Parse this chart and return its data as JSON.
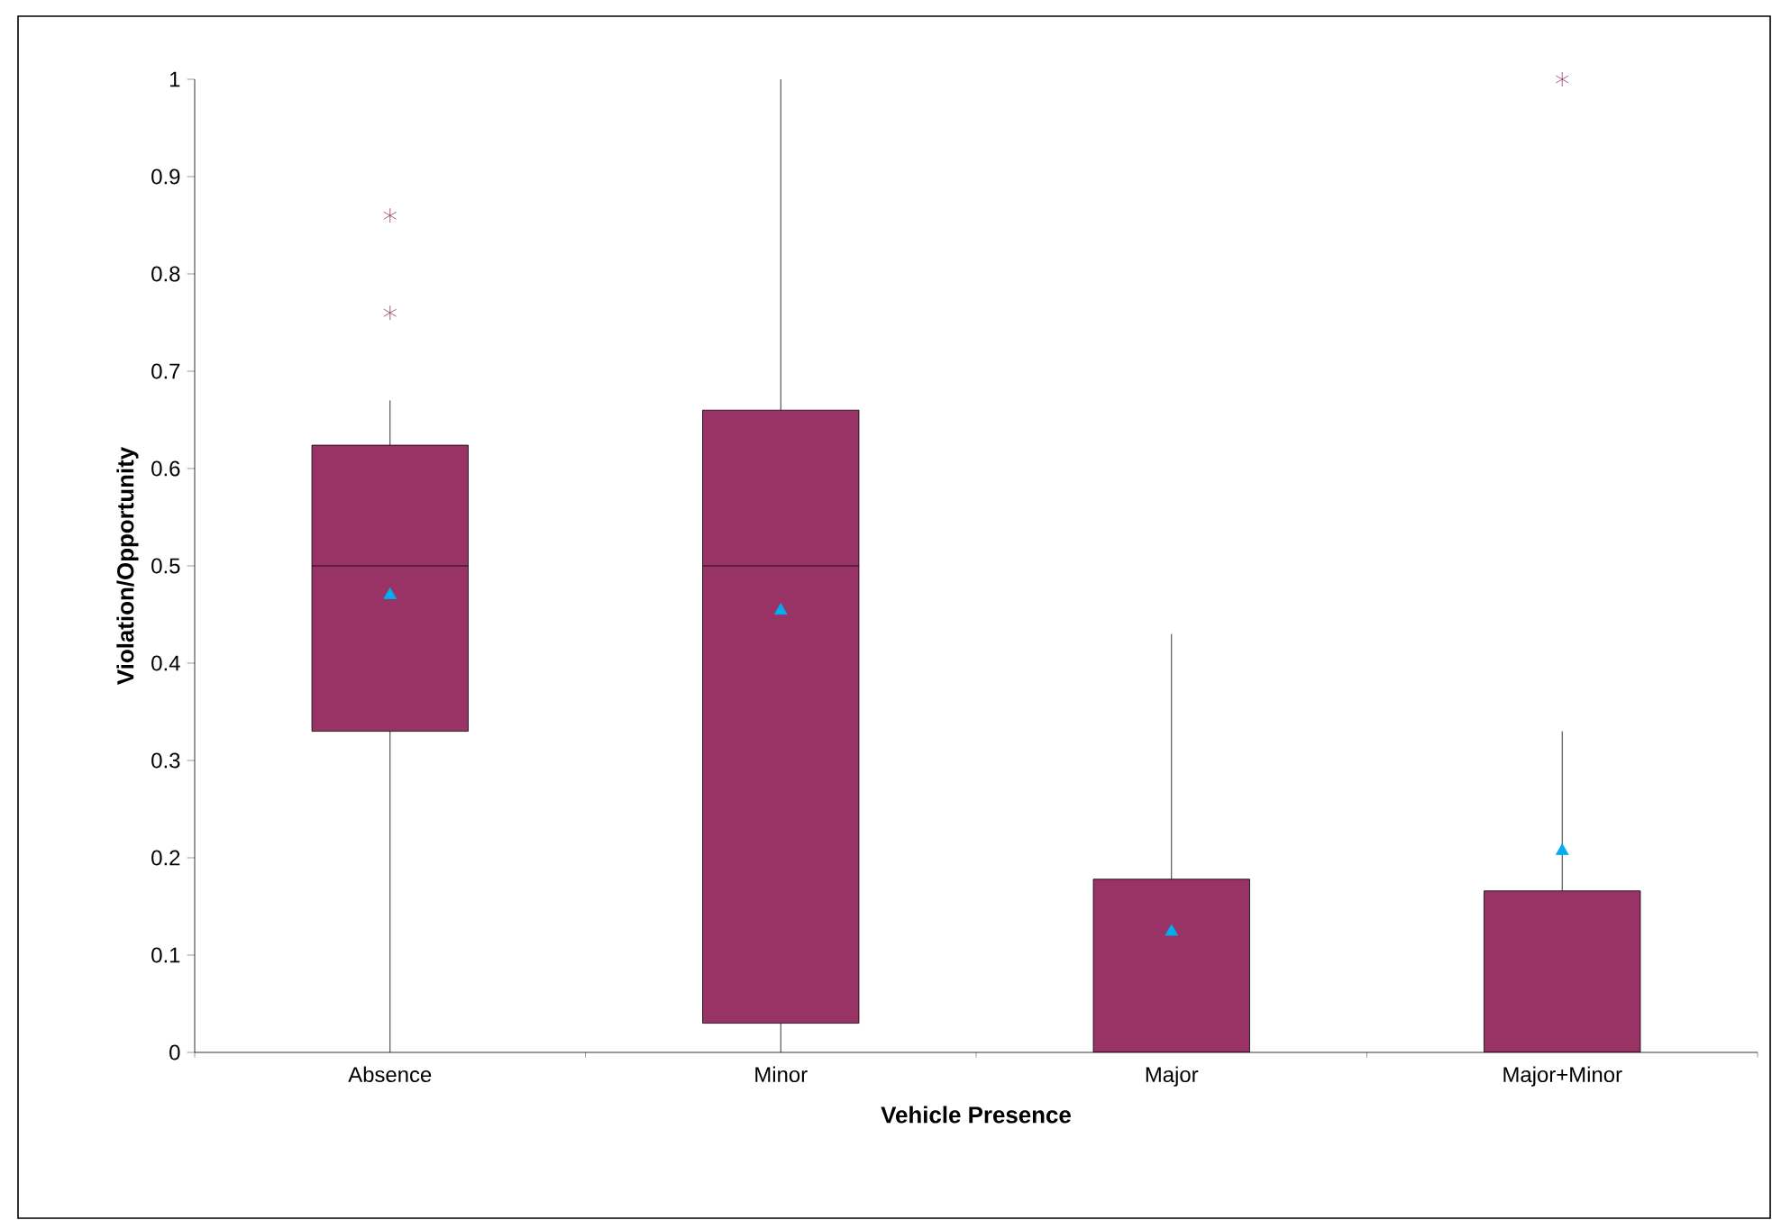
{
  "chart_data": {
    "type": "box",
    "xlabel": "Vehicle Presence",
    "ylabel": "Violation/Opportunity",
    "categories": [
      "Absence",
      "Minor",
      "Major",
      "Major+Minor"
    ],
    "ylim": [
      0,
      1
    ],
    "yticks": [
      0,
      0.1,
      0.2,
      0.3,
      0.4,
      0.5,
      0.6,
      0.7,
      0.8,
      0.9,
      1
    ],
    "grid": false,
    "series": [
      {
        "color": "#993366",
        "boxes": [
          {
            "low": 0,
            "q1": 0.33,
            "median": 0.5,
            "q3": 0.624,
            "high": 0.67,
            "mean": 0.47,
            "outliers": [
              0.86,
              0.76
            ]
          },
          {
            "low": 0,
            "q1": 0.03,
            "median": 0.5,
            "q3": 0.66,
            "high": 1,
            "mean": 0.454
          },
          {
            "low": 0,
            "q1": 0,
            "median": 0,
            "q3": 0.178,
            "high": 0.43,
            "mean": 0.124
          },
          {
            "low": 0,
            "q1": 0,
            "median": 0,
            "q3": 0.166,
            "high": 0.33,
            "mean": 0.207,
            "outliers": [
              1
            ]
          }
        ]
      }
    ]
  }
}
